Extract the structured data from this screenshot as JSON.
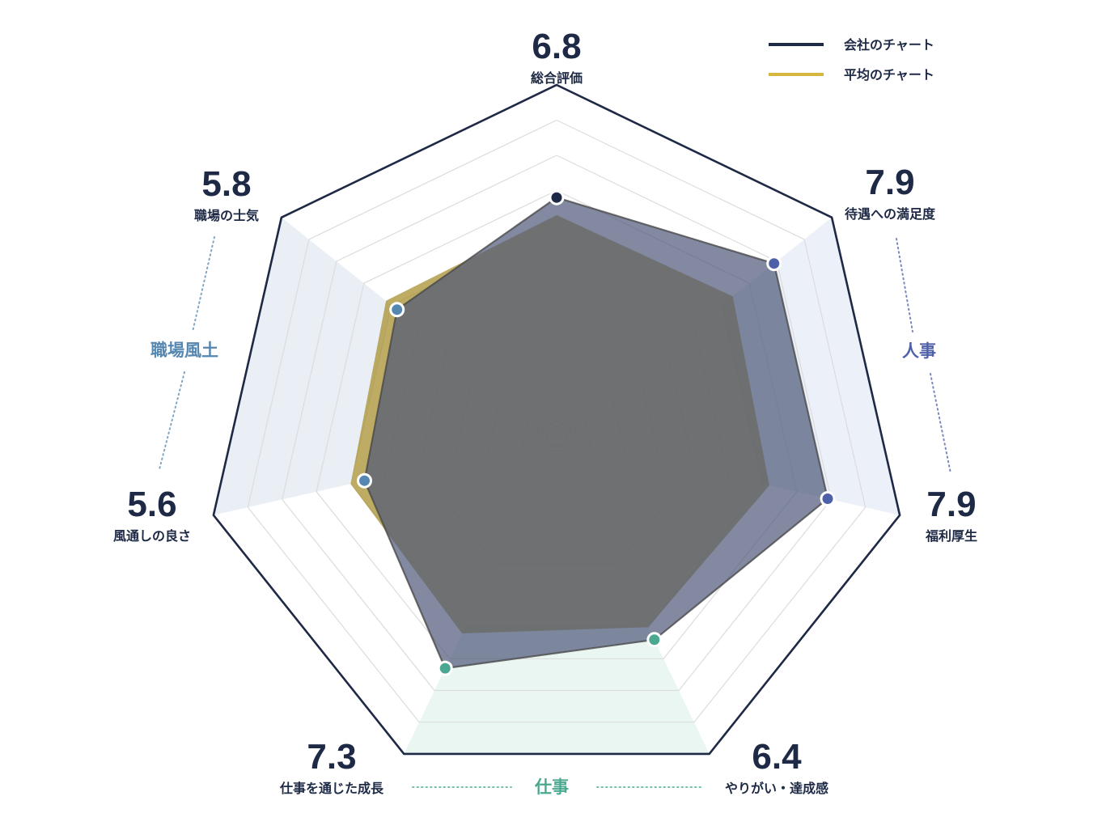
{
  "chart_data": {
    "type": "radar",
    "axes": [
      {
        "label": "総合評価",
        "score": "6.8"
      },
      {
        "label": "待遇への満足度",
        "score": "7.9"
      },
      {
        "label": "福利厚生",
        "score": "7.9"
      },
      {
        "label": "やりがい・達成感",
        "score": "6.4"
      },
      {
        "label": "仕事を通じた成長",
        "score": "7.3"
      },
      {
        "label": "風通しの良さ",
        "score": "5.6"
      },
      {
        "label": "職場の士気",
        "score": "5.8"
      }
    ],
    "range": [
      0,
      10
    ],
    "series": [
      {
        "name": "会社のチャート",
        "color": "#1e2945",
        "fill": "#4d5778",
        "values": [
          6.8,
          7.9,
          7.9,
          6.4,
          7.3,
          5.6,
          5.8
        ]
      },
      {
        "name": "平均のチャート",
        "color": "#d6b73d",
        "fill": "#a89030",
        "values": [
          6.3,
          6.4,
          6.2,
          6.0,
          6.2,
          6.0,
          6.2
        ]
      }
    ],
    "groups": [
      {
        "label": "人事",
        "color": "#4e60a8",
        "point_color": "#4e60a8",
        "axes": [
          1,
          2
        ]
      },
      {
        "label": "仕事",
        "color": "#4ba890",
        "point_color": "#4ba890",
        "axes": [
          3,
          4
        ]
      },
      {
        "label": "職場風土",
        "color": "#5687b0",
        "point_color": "#5687b0",
        "axes": [
          5,
          6
        ]
      }
    ],
    "top_point_color": "#1e2945",
    "legend_position": "top-right",
    "grid": true
  }
}
